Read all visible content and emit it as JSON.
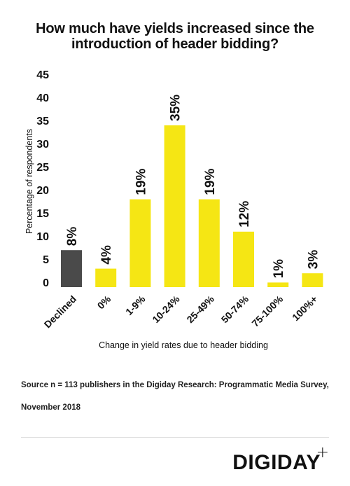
{
  "title_line1": "How much have yields increased since the",
  "title_line2": "introduction of header bidding?",
  "chart_data": {
    "type": "bar",
    "title": "How much have yields increased since the introduction of header bidding?",
    "xlabel": "Change in yield rates due to header bidding",
    "ylabel": "Percentage of respondents",
    "categories": [
      "Declined",
      "0%",
      "1-9%",
      "10-24%",
      "25-49%",
      "50-74%",
      "75-100%",
      "100%+"
    ],
    "values": [
      8,
      4,
      19,
      35,
      19,
      12,
      1,
      3
    ],
    "value_labels": [
      "8%",
      "4%",
      "19%",
      "35%",
      "19%",
      "12%",
      "1%",
      "3%"
    ],
    "yticks": [
      0,
      5,
      10,
      15,
      20,
      25,
      30,
      35,
      40,
      45
    ],
    "ylim": [
      0,
      45
    ],
    "grid": false,
    "colors": {
      "highlight": "#4a4a4a",
      "default": "#f5e614"
    },
    "highlight_index": 0
  },
  "source_line1": "Source n = 113 publishers in the Digiday Research: Programmatic Media Survey,",
  "source_line2": "November 2018",
  "logo_text": "DIGIDAY",
  "logo_plus": "+"
}
